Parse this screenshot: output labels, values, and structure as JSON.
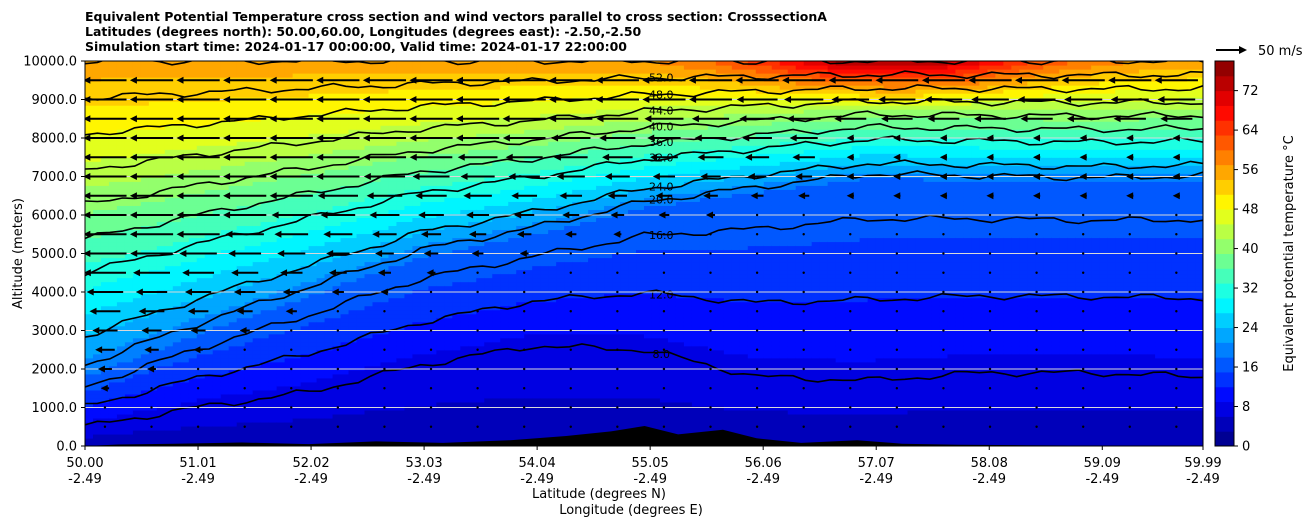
{
  "chart_data": {
    "type": "heatmap",
    "title_lines": [
      "Equivalent Potential Temperature cross section and wind vectors parallel to cross section: CrosssectionA",
      "Latitudes (degrees north): 50.00,60.00, Longitudes (degrees east): -2.50,-2.50",
      "Simulation start time: 2024-01-17 00:00:00, Valid time: 2024-01-17 22:00:00"
    ],
    "ylabel": "Altitude (meters)",
    "xlabel_1": "Latitude (degrees N)",
    "xlabel_2": "Longitude (degrees E)",
    "y_ticks": [
      "0.0",
      "1000.0",
      "2000.0",
      "3000.0",
      "4000.0",
      "5000.0",
      "6000.0",
      "7000.0",
      "8000.0",
      "9000.0",
      "10000.0"
    ],
    "ylim": [
      0,
      10000
    ],
    "x_ticks_lat": [
      "50.00",
      "51.01",
      "52.02",
      "53.03",
      "54.04",
      "55.05",
      "56.06",
      "57.07",
      "58.08",
      "59.09",
      "59.99"
    ],
    "x_ticks_lon": [
      "-2.49",
      "-2.49",
      "-2.49",
      "-2.49",
      "-2.49",
      "-2.49",
      "-2.49",
      "-2.49",
      "-2.49",
      "-2.49",
      "-2.49"
    ],
    "x_tick_values": [
      50.0,
      51.01,
      52.02,
      53.03,
      54.04,
      55.05,
      56.06,
      57.07,
      58.08,
      59.09,
      59.99
    ],
    "xlim": [
      50.0,
      59.99
    ],
    "colorbar": {
      "label": "Equivalent potential temperature °C",
      "ticks": [
        "0",
        "8",
        "16",
        "24",
        "32",
        "40",
        "48",
        "56",
        "64",
        "72"
      ],
      "range": [
        0,
        78
      ]
    },
    "quiver_key": {
      "label": "50 m/s",
      "speed": 50
    },
    "theta_e_surface": {
      "x": [
        50.0,
        51.0,
        52.0,
        53.0,
        54.0,
        55.0,
        56.0,
        57.0,
        58.0,
        59.0,
        59.99
      ],
      "z0": [
        1800,
        2900,
        3900,
        4900,
        5500,
        6200,
        6600,
        6950,
        6900,
        6850,
        6900
      ],
      "z1": [
        500,
        1000,
        1400,
        2100,
        2600,
        2500,
        1800,
        1700,
        1900,
        1900,
        1800
      ],
      "upper_peak_x": 57.2
    },
    "contours": [
      {
        "label": "8.0",
        "level": 8
      },
      {
        "label": "12.0",
        "level": 12
      },
      {
        "label": "16.0",
        "level": 16
      },
      {
        "label": "20.0",
        "level": 20
      },
      {
        "label": "24.0",
        "level": 24
      },
      {
        "label": "32.0",
        "level": 32
      },
      {
        "label": "36.0",
        "level": 36
      },
      {
        "label": "40.0",
        "level": 40
      },
      {
        "label": "44.0",
        "level": 44
      },
      {
        "label": "48.0",
        "level": 48
      },
      {
        "label": "52.0",
        "level": 52
      },
      {
        "label": "56.0",
        "level": 56
      }
    ],
    "wind_vectors": {
      "columns": 24,
      "altitudes": [
        500,
        1000,
        1500,
        2000,
        2500,
        3000,
        3500,
        4000,
        4500,
        5000,
        5500,
        6000,
        6500,
        7000,
        7500,
        8000,
        8500,
        9000,
        9500
      ],
      "max_speed_ms": 30
    }
  }
}
